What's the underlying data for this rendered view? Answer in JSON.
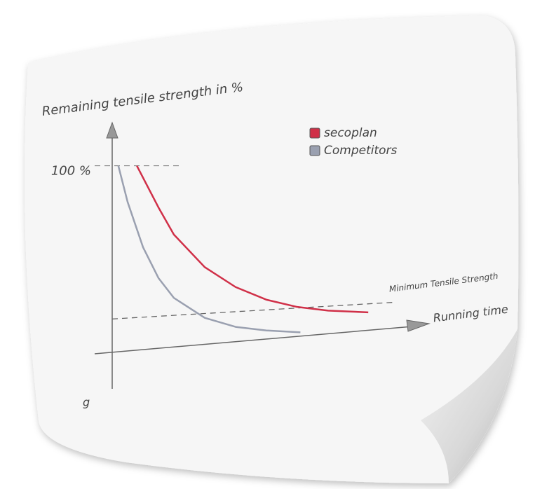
{
  "chart_data": {
    "type": "line",
    "title": "Remaining tensile strength in %",
    "x_label": "Running time",
    "xlim": [
      0,
      100
    ],
    "ylim": [
      0,
      120
    ],
    "yticks": [
      {
        "value": 100,
        "label": "100 %"
      }
    ],
    "threshold": 20,
    "threshold_label": "Minimum Tensile Strength",
    "series": [
      {
        "name": "secoplan",
        "color": "#d03048",
        "x": [
          8,
          15,
          20,
          30,
          40,
          50,
          60,
          70,
          83
        ],
        "values": [
          100,
          77,
          62,
          44,
          33,
          26,
          22,
          20,
          19
        ]
      },
      {
        "name": "Competitors",
        "color": "#9aa0b0",
        "x": [
          2,
          5,
          10,
          15,
          20,
          30,
          40,
          50,
          61
        ],
        "values": [
          100,
          80,
          55,
          38,
          27,
          16,
          11,
          9,
          8
        ]
      }
    ]
  },
  "edge_text": "g"
}
